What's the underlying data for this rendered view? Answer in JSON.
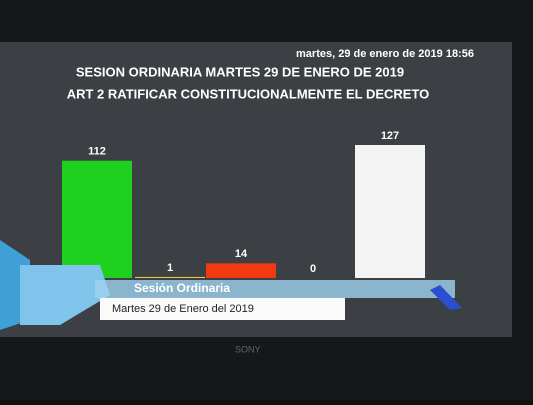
{
  "chart_data": {
    "type": "bar",
    "timestamp": "martes, 29 de enero de 2019 18:56",
    "title": "SESION ORDINARIA MARTES 29 DE ENERO DE 2019",
    "subtitle": "ART 2 RATIFICAR CONSTITUCIONALMENTE EL DECRETO",
    "categories": [
      null,
      null,
      null,
      null,
      null
    ],
    "values": [
      112,
      1,
      14,
      0,
      127
    ],
    "colors": [
      "#1fd11f",
      "#e8c840",
      "#f03a10",
      "#8a8a8a",
      "#f4f4f4"
    ],
    "banner": {
      "title": "Sesión Ordinaria",
      "date": "Martes 29 de Enero del 2019"
    },
    "brand": "SONY"
  }
}
